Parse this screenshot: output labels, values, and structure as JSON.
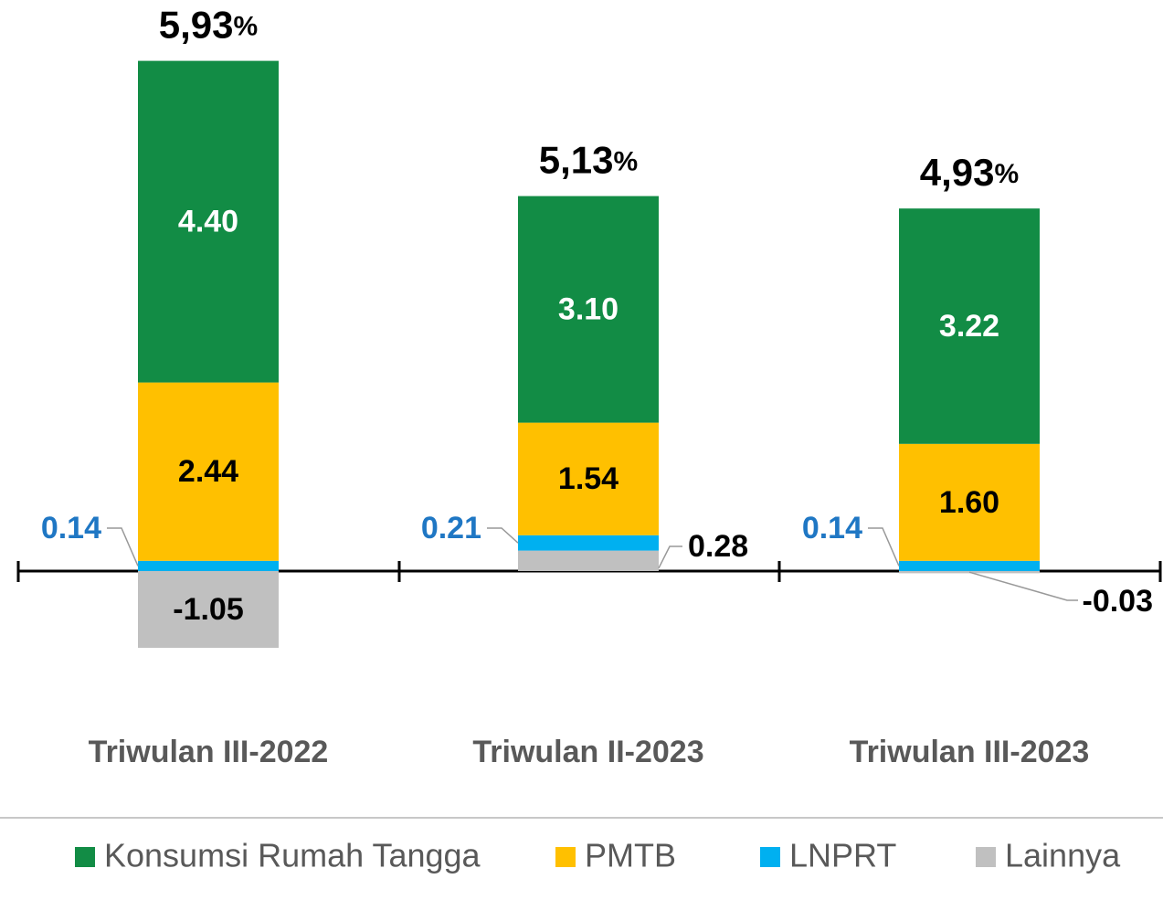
{
  "chart_data": {
    "type": "bar",
    "stacked": true,
    "categories": [
      "Triwulan III-2022",
      "Triwulan II-2023",
      "Triwulan III-2023"
    ],
    "totals": [
      5.93,
      5.13,
      4.93
    ],
    "total_labels": [
      "5,93%",
      "5,13%",
      "4,93%"
    ],
    "series": [
      {
        "name": "Konsumsi Rumah Tangga",
        "color": "#128c45",
        "values": [
          4.4,
          3.1,
          3.22
        ],
        "value_labels": [
          "4.40",
          "3.10",
          "3.22"
        ]
      },
      {
        "name": "PMTB",
        "color": "#ffc000",
        "values": [
          2.44,
          1.54,
          1.6
        ],
        "value_labels": [
          "2.44",
          "1.54",
          "1.60"
        ]
      },
      {
        "name": "LNPRT",
        "color": "#00b0f0",
        "values": [
          0.14,
          0.21,
          0.14
        ],
        "value_labels": [
          "0.14",
          "0.21",
          "0.14"
        ]
      },
      {
        "name": "Lainnya",
        "color": "#c0c0c0",
        "values": [
          -1.05,
          0.28,
          -0.03
        ],
        "value_labels": [
          "-1.05",
          "0.28",
          "-0.03"
        ]
      }
    ],
    "legend": "bottom"
  }
}
